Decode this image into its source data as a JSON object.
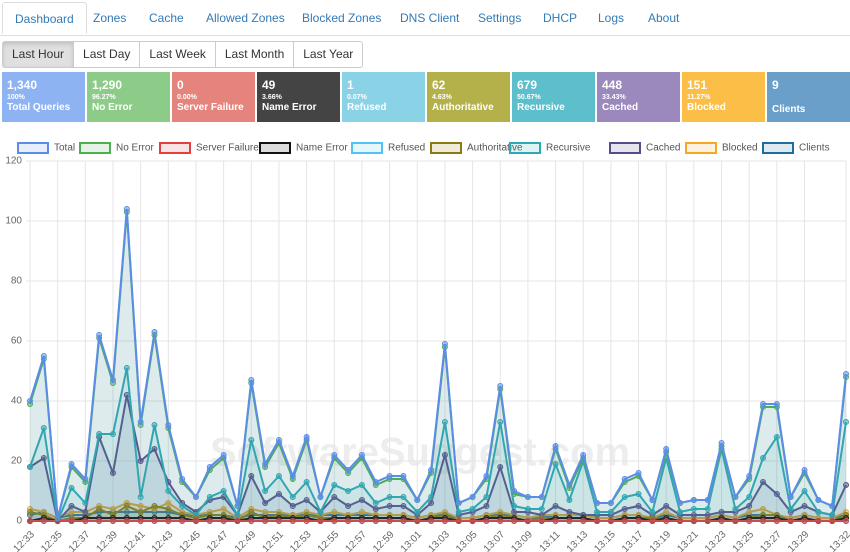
{
  "nav": {
    "tabs": [
      "Dashboard",
      "Zones",
      "Cache",
      "Allowed Zones",
      "Blocked Zones",
      "DNS Client",
      "Settings",
      "DHCP",
      "Logs",
      "About"
    ],
    "active_tab": 0
  },
  "ranges": {
    "buttons": [
      "Last Hour",
      "Last Day",
      "Last Week",
      "Last Month",
      "Last Year"
    ],
    "active_button": 0
  },
  "stats": [
    {
      "value": "1,340",
      "percent": "100%",
      "label": "Total Queries",
      "color": "#8db3f3"
    },
    {
      "value": "1,290",
      "percent": "96.27%",
      "label": "No Error",
      "color": "#8dcc88"
    },
    {
      "value": "0",
      "percent": "0.00%",
      "label": "Server Failure",
      "color": "#e5847d"
    },
    {
      "value": "49",
      "percent": "3.66%",
      "label": "Name Error",
      "color": "#444444"
    },
    {
      "value": "1",
      "percent": "0.07%",
      "label": "Refused",
      "color": "#8ad2e6"
    },
    {
      "value": "62",
      "percent": "4.63%",
      "label": "Authoritative",
      "color": "#b5b14a"
    },
    {
      "value": "679",
      "percent": "50.67%",
      "label": "Recursive",
      "color": "#5cbfcb"
    },
    {
      "value": "448",
      "percent": "33.43%",
      "label": "Cached",
      "color": "#9b88bd"
    },
    {
      "value": "151",
      "percent": "11.27%",
      "label": "Blocked",
      "color": "#fbbe47"
    },
    {
      "value": "9",
      "percent": "",
      "label": "Clients",
      "color": "#6a9fca"
    }
  ],
  "watermark": "SoftwareSuggest.com",
  "chart_data": {
    "type": "line",
    "categories": [
      "12:33",
      null,
      "12:35",
      null,
      "12:37",
      null,
      "12:39",
      null,
      "12:41",
      null,
      "12:43",
      null,
      "12:45",
      null,
      "12:47",
      null,
      "12:49",
      null,
      "12:51",
      null,
      "12:53",
      null,
      "12:55",
      null,
      "12:57",
      null,
      "12:59",
      null,
      "13:01",
      null,
      "13:03",
      null,
      "13:05",
      null,
      "13:07",
      null,
      "13:09",
      null,
      "13:11",
      null,
      "13:13",
      null,
      "13:15",
      null,
      "13:17",
      null,
      "13:19",
      null,
      "13:21",
      null,
      "13:23",
      null,
      "13:25",
      null,
      "13:27",
      null,
      "13:29",
      null,
      null,
      "13:32"
    ],
    "ylim": [
      0,
      120
    ],
    "yticks": [
      0,
      20,
      40,
      60,
      80,
      100,
      120
    ],
    "grid": true,
    "series": [
      {
        "name": "Total",
        "color": "#5b8de8",
        "values": [
          40,
          55,
          1,
          19,
          14,
          62,
          47,
          104,
          33,
          63,
          32,
          14,
          8,
          18,
          22,
          5,
          47,
          19,
          27,
          15,
          28,
          8,
          22,
          17,
          22,
          13,
          15,
          15,
          7,
          17,
          59,
          6,
          8,
          15,
          45,
          10,
          8,
          8,
          25,
          12,
          22,
          6,
          6,
          14,
          16,
          7,
          24,
          6,
          7,
          7,
          26,
          8,
          15,
          39,
          39,
          8,
          17,
          7,
          5,
          49
        ]
      },
      {
        "name": "No Error",
        "color": "#4caf50",
        "values": [
          39,
          54,
          1,
          18,
          13,
          61,
          46,
          103,
          32,
          62,
          31,
          13,
          8,
          17,
          21,
          5,
          46,
          18,
          26,
          14,
          27,
          8,
          21,
          16,
          21,
          12,
          14,
          14,
          7,
          16,
          58,
          6,
          8,
          14,
          44,
          9,
          8,
          8,
          24,
          11,
          21,
          6,
          6,
          13,
          15,
          7,
          23,
          6,
          7,
          7,
          25,
          8,
          14,
          38,
          38,
          8,
          16,
          7,
          5,
          48
        ]
      },
      {
        "name": "Server Failure",
        "color": "#e04040",
        "values": [
          0,
          0,
          0,
          0,
          0,
          0,
          0,
          0,
          0,
          0,
          0,
          0,
          0,
          0,
          0,
          0,
          0,
          0,
          0,
          0,
          0,
          0,
          0,
          0,
          0,
          0,
          0,
          0,
          0,
          0,
          0,
          0,
          0,
          0,
          0,
          0,
          0,
          0,
          0,
          0,
          0,
          0,
          0,
          0,
          0,
          0,
          0,
          0,
          0,
          0,
          0,
          0,
          0,
          0,
          0,
          0,
          0,
          0,
          0,
          0
        ]
      },
      {
        "name": "Name Error",
        "color": "#111111",
        "values": [
          0,
          1,
          0,
          0,
          1,
          1,
          1,
          1,
          1,
          1,
          1,
          1,
          0,
          1,
          1,
          0,
          1,
          1,
          1,
          1,
          1,
          0,
          1,
          1,
          1,
          1,
          1,
          1,
          0,
          1,
          1,
          0,
          0,
          1,
          1,
          1,
          0,
          0,
          1,
          1,
          1,
          0,
          0,
          1,
          1,
          0,
          1,
          0,
          0,
          0,
          1,
          0,
          1,
          1,
          1,
          0,
          1,
          0,
          0,
          1
        ]
      },
      {
        "name": "Refused",
        "color": "#4fc3f7",
        "values": [
          0,
          0,
          0,
          0,
          0,
          0,
          0,
          0,
          0,
          0,
          0,
          0,
          0,
          0,
          0,
          0,
          0,
          0,
          0,
          0,
          1,
          0,
          0,
          0,
          0,
          0,
          0,
          0,
          0,
          0,
          0,
          0,
          0,
          0,
          0,
          0,
          0,
          0,
          0,
          0,
          0,
          0,
          0,
          0,
          0,
          0,
          0,
          0,
          0,
          0,
          0,
          0,
          0,
          0,
          0,
          0,
          0,
          0,
          0,
          0
        ]
      },
      {
        "name": "Authoritative",
        "color": "#8a7a10",
        "values": [
          3,
          2,
          0,
          1,
          1,
          4,
          2,
          5,
          3,
          5,
          4,
          2,
          1,
          2,
          2,
          0,
          3,
          1,
          2,
          1,
          2,
          1,
          1,
          1,
          1,
          1,
          1,
          1,
          0,
          1,
          2,
          0,
          0,
          1,
          2,
          1,
          0,
          1,
          1,
          1,
          1,
          0,
          0,
          1,
          1,
          1,
          1,
          0,
          0,
          0,
          1,
          0,
          1,
          2,
          2,
          0,
          1,
          0,
          0,
          2
        ]
      },
      {
        "name": "Recursive",
        "color": "#2aaab5",
        "values": [
          18,
          31,
          0,
          11,
          6,
          29,
          29,
          51,
          8,
          32,
          10,
          5,
          2,
          8,
          10,
          2,
          27,
          10,
          15,
          8,
          13,
          3,
          12,
          10,
          12,
          6,
          8,
          8,
          3,
          8,
          33,
          3,
          4,
          8,
          33,
          5,
          4,
          4,
          19,
          7,
          20,
          3,
          3,
          8,
          9,
          3,
          21,
          3,
          4,
          4,
          24,
          4,
          8,
          21,
          28,
          4,
          10,
          3,
          2,
          33
        ]
      },
      {
        "name": "Cached",
        "color": "#5a4a8a",
        "values": [
          18,
          21,
          0,
          5,
          3,
          28,
          16,
          42,
          20,
          24,
          13,
          6,
          3,
          7,
          8,
          2,
          15,
          6,
          9,
          5,
          7,
          3,
          8,
          5,
          7,
          4,
          5,
          5,
          2,
          6,
          22,
          2,
          3,
          5,
          18,
          3,
          3,
          2,
          5,
          3,
          2,
          2,
          2,
          4,
          5,
          2,
          5,
          2,
          2,
          2,
          3,
          3,
          5,
          13,
          9,
          3,
          5,
          3,
          2,
          12
        ]
      },
      {
        "name": "Blocked",
        "color": "#f5a623",
        "values": [
          4,
          3,
          1,
          3,
          3,
          5,
          4,
          6,
          5,
          4,
          6,
          3,
          2,
          3,
          4,
          1,
          4,
          3,
          3,
          2,
          3,
          2,
          3,
          2,
          3,
          2,
          2,
          2,
          1,
          2,
          3,
          1,
          1,
          2,
          3,
          2,
          1,
          2,
          2,
          2,
          2,
          1,
          1,
          2,
          2,
          1,
          3,
          1,
          1,
          1,
          2,
          1,
          3,
          4,
          2,
          1,
          2,
          1,
          1,
          3
        ]
      },
      {
        "name": "Clients",
        "color": "#1f6d9e",
        "values": [
          2,
          3,
          1,
          2,
          2,
          3,
          3,
          3,
          3,
          3,
          3,
          2,
          2,
          2,
          2,
          1,
          2,
          2,
          2,
          2,
          2,
          2,
          2,
          2,
          2,
          2,
          2,
          2,
          1,
          2,
          2,
          1,
          1,
          2,
          2,
          2,
          1,
          1,
          2,
          2,
          2,
          1,
          1,
          2,
          2,
          1,
          2,
          1,
          1,
          1,
          2,
          1,
          2,
          2,
          2,
          1,
          2,
          1,
          1,
          2
        ]
      }
    ]
  }
}
